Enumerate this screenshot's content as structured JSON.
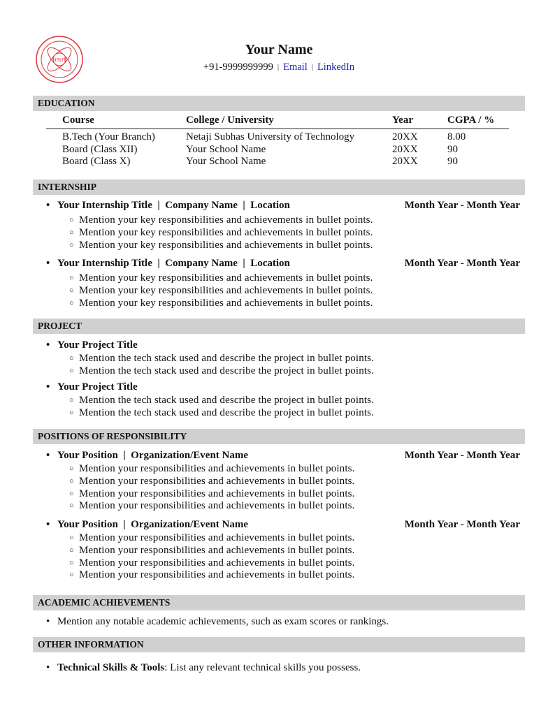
{
  "header": {
    "logo_text": "NSUT",
    "name": "Your Name",
    "phone": "+91-9999999999",
    "separator": "|",
    "email_label": "Email",
    "linkedin_label": "LinkedIn",
    "link_color": "#2323b5"
  },
  "education": {
    "title": "EDUCATION",
    "columns": [
      "Course",
      "College / University",
      "Year",
      "CGPA / %"
    ],
    "rows": [
      [
        "B.Tech (Your Branch)",
        "Netaji Subhas University of Technology",
        "20XX",
        "8.00"
      ],
      [
        "Board (Class XII)",
        "Your School Name",
        "20XX",
        "90"
      ],
      [
        "Board (Class X)",
        "Your School Name",
        "20XX",
        "90"
      ]
    ]
  },
  "sections": [
    {
      "title": "INTERNSHIP",
      "items": [
        {
          "title": "Your Internship Title  |  Company Name  |  Location",
          "date": "Month Year - Month Year",
          "bullets": [
            "Mention your key responsibilities and achievements in bullet points.",
            "Mention your key responsibilities and achievements in bullet points.",
            "Mention your key responsibilities and achievements in bullet points."
          ]
        },
        {
          "title": "Your Internship Title  |  Company Name  |  Location",
          "date": "Month Year - Month Year",
          "bullets": [
            "Mention your key responsibilities and achievements in bullet points.",
            "Mention your key responsibilities and achievements in bullet points.",
            "Mention your key responsibilities and achievements in bullet points."
          ]
        }
      ]
    },
    {
      "title": "PROJECT",
      "items": [
        {
          "title": "Your Project Title",
          "date": "",
          "bullets": [
            "Mention the tech stack used and describe the project in bullet points.",
            "Mention the tech stack used and describe the project in bullet points."
          ]
        },
        {
          "title": "Your Project Title",
          "date": "",
          "bullets": [
            "Mention the tech stack used and describe the project in bullet points.",
            "Mention the tech stack used and describe the project in bullet points."
          ]
        }
      ]
    },
    {
      "title": "POSITIONS OF RESPONSIBILITY",
      "items": [
        {
          "title": "Your Position  |  Organization/Event Name",
          "date": "Month Year - Month Year",
          "bullets": [
            "Mention your responsibilities and achievements in bullet points.",
            "Mention your responsibilities and achievements in bullet points.",
            "Mention your responsibilities and achievements in bullet points.",
            "Mention your responsibilities and achievements in bullet points."
          ]
        },
        {
          "title": "Your Position  |  Organization/Event Name",
          "date": "Month Year - Month Year",
          "bullets": [
            "Mention your responsibilities and achievements in bullet points.",
            "Mention your responsibilities and achievements in bullet points.",
            "Mention your responsibilities and achievements in bullet points.",
            "Mention your responsibilities and achievements in bullet points."
          ]
        }
      ]
    }
  ],
  "academic": {
    "title": "ACADEMIC ACHIEVEMENTS",
    "text": "Mention any notable academic achievements, such as exam scores or rankings."
  },
  "other": {
    "title": "OTHER INFORMATION",
    "label": "Technical Skills & Tools",
    "text": ": List any relevant technical skills you possess."
  }
}
